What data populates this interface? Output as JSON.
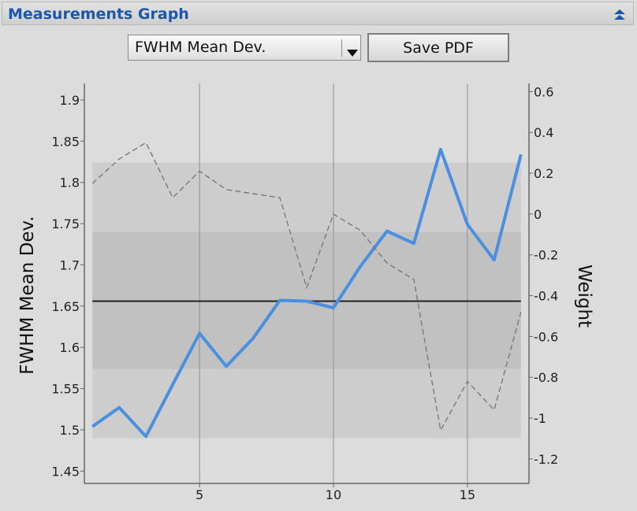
{
  "panel": {
    "title": "Measurements Graph",
    "collapse_icon": "double-chevron-up-icon"
  },
  "controls": {
    "metric_select_value": "FWHM Mean Dev.",
    "save_label": "Save PDF"
  },
  "colors": {
    "accent": "#1f57a8",
    "series_main": "#4a8fe0",
    "series_weight": "#7a7a7a",
    "band_outer": "#cdcdcd",
    "band_inner": "#c1c1c1",
    "mean_line": "#222222"
  },
  "chart_data": {
    "type": "line",
    "ylabel": "FWHM Mean Dev.",
    "y2label": "Weight",
    "xlim": [
      0.7,
      17.3
    ],
    "ylim": [
      1.435,
      1.92
    ],
    "y2lim": [
      -1.32,
      0.64
    ],
    "x_ticks": [
      5,
      10,
      15
    ],
    "x_tick_labels": [
      "5",
      "10",
      "15"
    ],
    "y_ticks": [
      1.45,
      1.5,
      1.55,
      1.6,
      1.65,
      1.7,
      1.75,
      1.8,
      1.85,
      1.9
    ],
    "y_tick_labels": [
      "1.45",
      "1.5",
      "1.55",
      "1.6",
      "1.65",
      "1.7",
      "1.75",
      "1.8",
      "1.85",
      "1.9"
    ],
    "y2_ticks": [
      -1.2,
      -1,
      -0.8,
      -0.6,
      -0.4,
      -0.2,
      0,
      0.2,
      0.4,
      0.6
    ],
    "y2_tick_labels": [
      "-1.2",
      "-1",
      "-0.8",
      "-0.6",
      "-0.4",
      "-0.2",
      "0",
      "0.2",
      "0.4",
      "0.6"
    ],
    "grid": "vertical lines at x ticks",
    "bands": [
      {
        "y0": 1.49,
        "y1": 1.824
      },
      {
        "y0": 1.574,
        "y1": 1.74
      }
    ],
    "mean": 1.656,
    "series": [
      {
        "axis": "left",
        "style": "solid",
        "x": [
          1,
          2,
          3,
          4,
          5,
          6,
          7,
          8,
          9,
          10,
          11,
          12,
          13,
          14,
          15,
          16,
          17
        ],
        "values": [
          1.504,
          1.527,
          1.492,
          1.555,
          1.617,
          1.577,
          1.611,
          1.657,
          1.656,
          1.648,
          1.698,
          1.741,
          1.726,
          1.84,
          1.749,
          1.706,
          1.834
        ]
      },
      {
        "axis": "right",
        "style": "dashed",
        "x": [
          1,
          2,
          3,
          4,
          5,
          6,
          7,
          8,
          9,
          10,
          11,
          12,
          13,
          14,
          15,
          16,
          17
        ],
        "values": [
          0.15,
          0.27,
          0.35,
          0.08,
          0.21,
          0.12,
          0.1,
          0.08,
          -0.36,
          0.0,
          -0.08,
          -0.24,
          -0.32,
          -1.06,
          -0.82,
          -0.96,
          -0.48
        ]
      }
    ]
  }
}
